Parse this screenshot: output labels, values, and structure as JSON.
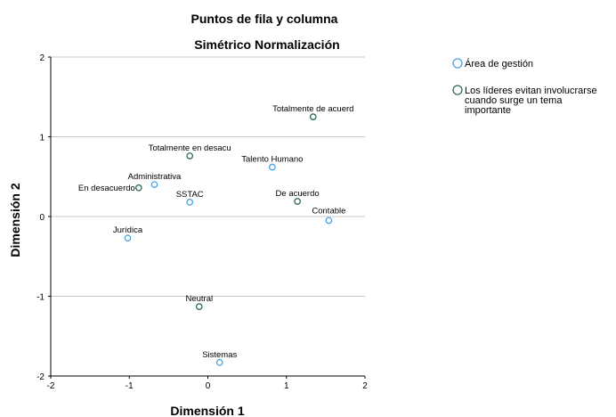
{
  "chart_data": {
    "type": "scatter",
    "title": "Puntos de fila y columna",
    "subtitle": "Simétrico Normalización",
    "xlabel": "Dimensión 1",
    "ylabel": "Dimensión 2",
    "xlim": [
      -2,
      2
    ],
    "ylim": [
      -2,
      2
    ],
    "xticks": [
      -2,
      -1,
      0,
      1,
      2
    ],
    "yticks": [
      2,
      1,
      0,
      -1,
      -2
    ],
    "grid": "horizontal",
    "legend_position": "top-right",
    "series": [
      {
        "name": "Área de gestión",
        "color": "#4aa3e0",
        "points": [
          {
            "label": "Talento Humano",
            "x": 0.82,
            "y": 0.62
          },
          {
            "label": "Administrativa",
            "x": -0.68,
            "y": 0.4
          },
          {
            "label": "SSTAC",
            "x": -0.23,
            "y": 0.18
          },
          {
            "label": "Contable",
            "x": 1.54,
            "y": -0.05
          },
          {
            "label": "Jurídica",
            "x": -1.02,
            "y": -0.27
          },
          {
            "label": "Sistemas",
            "x": 0.15,
            "y": -1.83
          }
        ]
      },
      {
        "name": "Los líderes evitan involucrarse cuando surge un tema importante",
        "name_lines": [
          "Los líderes evitan involucrarse",
          "cuando surge un tema",
          "importante"
        ],
        "color": "#2e6b5a",
        "points": [
          {
            "label": "Totalmente de acuerd",
            "x": 1.34,
            "y": 1.25
          },
          {
            "label": "Totalmente en desacu",
            "x": -0.23,
            "y": 0.76
          },
          {
            "label": "En desacuerdo",
            "x": -0.88,
            "y": 0.36
          },
          {
            "label": "De acuerdo",
            "x": 1.14,
            "y": 0.19
          },
          {
            "label": "Neutral",
            "x": -0.11,
            "y": -1.13
          }
        ]
      }
    ]
  }
}
